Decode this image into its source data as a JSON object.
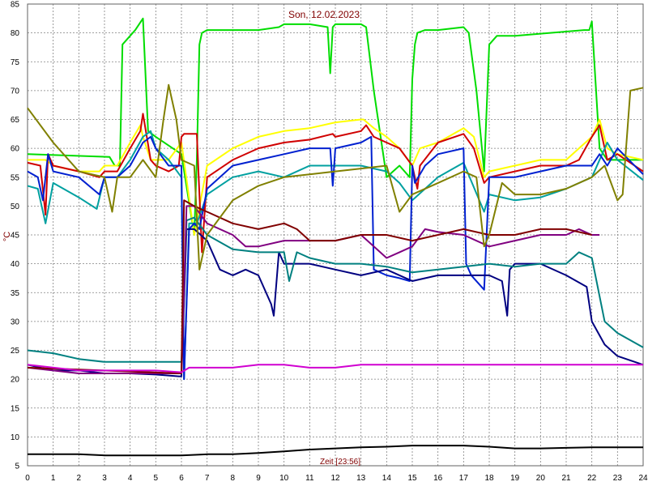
{
  "chart_data": {
    "type": "line",
    "title": "Son, 12.02.2023",
    "xlabel": "Zeit [23:56]",
    "ylabel": "°C",
    "xlim": [
      0,
      24
    ],
    "ylim": [
      5,
      85
    ],
    "xticks": [
      0,
      1,
      2,
      3,
      4,
      5,
      6,
      7,
      8,
      9,
      10,
      11,
      12,
      13,
      14,
      15,
      16,
      17,
      18,
      19,
      20,
      21,
      22,
      23,
      24
    ],
    "yticks": [
      5,
      10,
      15,
      20,
      25,
      30,
      35,
      40,
      45,
      50,
      55,
      60,
      65,
      70,
      75,
      80,
      85
    ],
    "grid": true,
    "colors": {
      "grid": "#808080",
      "title": "#800000",
      "ylabel": "#800000",
      "xlabel": "#800000"
    },
    "series": [
      {
        "color": "#00dd00",
        "x": [
          0,
          3.2,
          3.4,
          3.6,
          3.7,
          4.2,
          4.5,
          4.7,
          5,
          6,
          6.5,
          6.6,
          6.7,
          6.8,
          7,
          8,
          9,
          9.8,
          10,
          11,
          11.7,
          11.8,
          11.9,
          12,
          13,
          13.2,
          13.5,
          14,
          14.5,
          14.9,
          15,
          15.1,
          15.2,
          15.5,
          16,
          17,
          17.2,
          17.5,
          17.8,
          18,
          18.3,
          19,
          21.7,
          21.9,
          22,
          22.3,
          22.6,
          23,
          23.5,
          24
        ],
        "y": [
          59,
          58.5,
          57,
          57,
          78,
          80.5,
          82.5,
          63,
          62,
          59,
          45,
          58,
          78,
          80,
          80.5,
          80.5,
          80.5,
          81,
          81.5,
          81.5,
          81,
          73,
          81,
          81.5,
          81.5,
          81,
          70,
          55,
          57,
          55,
          72,
          78,
          80,
          80.5,
          80.5,
          81,
          80,
          70,
          56,
          78,
          79.5,
          79.5,
          80.5,
          80.5,
          82,
          60,
          58,
          58,
          58,
          58
        ]
      },
      {
        "color": "#ffff00",
        "x": [
          0,
          0.4,
          0.7,
          1,
          2,
          2.8,
          3,
          3.5,
          4,
          4.4,
          4.5,
          4.8,
          5,
          5.5,
          6,
          6.5,
          7,
          8,
          9,
          10,
          11,
          12,
          13,
          13.1,
          13.5,
          14,
          14.5,
          15,
          15.3,
          16,
          17,
          17.4,
          17.8,
          18,
          19,
          20,
          21,
          21.5,
          22,
          22.3,
          22.6,
          23,
          24
        ],
        "y": [
          58,
          58,
          58,
          57,
          56,
          56,
          57,
          57,
          61,
          64,
          62,
          58,
          58,
          58,
          61,
          45,
          57,
          60,
          62,
          63,
          63.5,
          64.5,
          65,
          65,
          63.5,
          62,
          60,
          57,
          60,
          61,
          63.5,
          62,
          55,
          56,
          57,
          58,
          58,
          60,
          62,
          65,
          60,
          59,
          58
        ]
      },
      {
        "color": "#d00000",
        "x": [
          0,
          0.5,
          0.7,
          0.8,
          1,
          2,
          2.8,
          3,
          3.5,
          4,
          4.4,
          4.5,
          4.8,
          5,
          5.5,
          5.9,
          6,
          6.1,
          6.6,
          6.8,
          7,
          8,
          9,
          10,
          11,
          11.9,
          12,
          13,
          13.2,
          13.5,
          14,
          14.5,
          15,
          15.2,
          15.3,
          16,
          17,
          17.4,
          17.8,
          18,
          19,
          20,
          21,
          21.5,
          22,
          22.3,
          22.6,
          23,
          24
        ],
        "y": [
          57.5,
          57,
          48.5,
          59,
          57,
          56,
          55,
          56,
          56,
          60,
          63,
          66,
          58,
          57,
          56,
          57,
          62,
          62.5,
          62.5,
          42,
          55,
          58,
          60,
          61,
          61.5,
          62.5,
          62,
          63,
          64,
          62,
          61,
          60,
          57,
          53,
          57,
          61,
          62.5,
          60,
          54,
          55,
          56,
          57,
          57,
          58,
          62,
          64,
          58,
          59,
          56
        ]
      },
      {
        "color": "#00a0a0",
        "x": [
          0,
          0.4,
          0.7,
          1,
          2,
          2.7,
          3,
          3.5,
          4,
          4.5,
          4.8,
          5,
          5.5,
          6,
          6.1,
          6.3,
          6.6,
          7,
          8,
          9,
          10,
          11,
          12,
          13,
          13.5,
          14,
          14.5,
          15,
          15.5,
          16,
          17,
          17.8,
          18,
          19,
          20,
          21,
          22,
          22.6,
          23,
          24
        ],
        "y": [
          53.5,
          53,
          47,
          54,
          51.5,
          49.5,
          55,
          55,
          58,
          62,
          63,
          60,
          58,
          55,
          20,
          47,
          47,
          52,
          55,
          56,
          55,
          57,
          57,
          57,
          56.5,
          56,
          54,
          51,
          53,
          55,
          57.5,
          49,
          52,
          51,
          51.5,
          53,
          55,
          61,
          58,
          54.5
        ]
      },
      {
        "color": "#0020d0",
        "x": [
          0,
          0.4,
          0.6,
          0.8,
          1,
          2,
          2.8,
          3,
          3.5,
          4,
          4.5,
          4.8,
          5,
          5.5,
          6,
          6.1,
          6.3,
          6.5,
          6.7,
          7,
          8,
          9,
          10,
          11,
          11.8,
          11.9,
          12,
          13,
          13.4,
          13.5,
          14,
          14.5,
          14.9,
          15,
          15.1,
          15.5,
          16,
          17,
          17.1,
          17.3,
          17.8,
          18,
          19,
          20,
          21,
          22,
          22.3,
          22.6,
          23,
          24
        ],
        "y": [
          56,
          55,
          51,
          59,
          56,
          55,
          52,
          55,
          55,
          57,
          61,
          62,
          60,
          57,
          57,
          20,
          46,
          47,
          46,
          53,
          57,
          58,
          59,
          60,
          60,
          53.5,
          60,
          61,
          62,
          39,
          38,
          37.5,
          37,
          57,
          54,
          57,
          59,
          60,
          40,
          38,
          35.5,
          55,
          55,
          56,
          57,
          57,
          59,
          57,
          60,
          55.5
        ]
      },
      {
        "color": "#000080",
        "x": [
          0,
          1,
          2,
          3,
          4,
          5,
          5.9,
          6,
          6.2,
          6.5,
          7,
          7.5,
          8,
          8.5,
          9,
          9.5,
          9.6,
          9.8,
          10,
          11,
          12,
          13,
          14,
          15,
          16,
          17,
          18,
          18.5,
          18.7,
          18.8,
          19,
          20,
          21,
          21.8,
          22,
          22.5,
          23,
          24
        ],
        "y": [
          22.5,
          21.5,
          21.5,
          21,
          21,
          20.8,
          20.5,
          20.5,
          46,
          46,
          44,
          39,
          38,
          39,
          38,
          33,
          31,
          42,
          40,
          40,
          39,
          38,
          39,
          37,
          38,
          38,
          38,
          37,
          31,
          39,
          40,
          40,
          38,
          36,
          30,
          26,
          24,
          22.5
        ]
      },
      {
        "color": "#008080",
        "x": [
          0,
          1,
          2,
          3,
          4,
          5,
          5.9,
          6,
          6.2,
          6.5,
          7,
          8,
          9,
          10,
          10.2,
          10.5,
          11,
          12,
          13,
          14,
          15,
          16,
          17,
          18,
          19,
          20,
          21,
          21.5,
          22,
          22.5,
          23,
          24
        ],
        "y": [
          25,
          24.5,
          23.5,
          23,
          23,
          23,
          23,
          23,
          47.5,
          48,
          45,
          42.5,
          42,
          42,
          37,
          42,
          41,
          40,
          40,
          39.5,
          38.5,
          39,
          39.5,
          40,
          39.5,
          40,
          40,
          42,
          41,
          30,
          28,
          25.5
        ]
      },
      {
        "color": "#800080",
        "x": [
          0,
          1,
          2,
          3,
          4,
          5,
          6,
          6.2,
          6.5,
          7,
          8,
          8.5,
          9,
          10,
          11,
          12,
          13,
          13.5,
          14,
          14.5,
          15,
          15.5,
          16,
          17,
          18,
          19,
          20,
          21,
          21.5,
          22,
          22.3
        ],
        "y": [
          22,
          21.5,
          21,
          21,
          21,
          21,
          21,
          50,
          50,
          47,
          45,
          43,
          43,
          44,
          44,
          44,
          45,
          43,
          41,
          42,
          43,
          46,
          45.5,
          45,
          43,
          44,
          45,
          45,
          46,
          45,
          45
        ]
      },
      {
        "color": "#800000",
        "x": [
          0,
          6,
          6.1,
          6.5,
          7,
          8,
          9,
          10,
          10.5,
          11,
          12,
          13,
          14,
          15,
          16,
          17,
          18,
          19,
          20,
          21,
          22
        ],
        "y": [
          22,
          21,
          51,
          50,
          49,
          47,
          46,
          47,
          46,
          44,
          44,
          45,
          45,
          44,
          45,
          46,
          45,
          45,
          46,
          46,
          45
        ]
      },
      {
        "color": "#808000",
        "x": [
          0,
          1,
          2,
          3,
          3.3,
          3.5,
          4,
          4.5,
          5,
          5.3,
          5.5,
          5.8,
          6,
          6.5,
          6.7,
          7,
          8,
          9,
          10,
          11,
          12,
          13,
          14,
          14.5,
          15,
          16,
          17,
          17.5,
          17.8,
          18,
          18.5,
          19,
          20,
          21,
          22,
          22.5,
          23,
          23.2,
          23.5,
          24
        ],
        "y": [
          67,
          61,
          56,
          55,
          49,
          55,
          55,
          58,
          55,
          65,
          71,
          65,
          58,
          57,
          39,
          45,
          51,
          53.5,
          55,
          55.5,
          56,
          56.5,
          57,
          49,
          52,
          54,
          56,
          55,
          43,
          45,
          54,
          52,
          52,
          53,
          55,
          57,
          51,
          52,
          70,
          70.5
        ]
      },
      {
        "color": "#d000d0",
        "x": [
          0,
          2,
          3,
          4,
          5,
          6,
          6.3,
          7,
          8,
          9,
          10,
          11,
          12,
          13,
          14,
          15,
          16,
          17,
          18,
          19,
          20,
          21,
          22,
          23,
          24
        ],
        "y": [
          22.5,
          21.5,
          21.5,
          21.5,
          21.5,
          21.2,
          22,
          22,
          22,
          22.5,
          22.5,
          22,
          22,
          22.5,
          22.5,
          22.5,
          22.5,
          22.5,
          22.5,
          22.5,
          22.5,
          22.5,
          22.5,
          22.5,
          22.5
        ]
      },
      {
        "color": "#000000",
        "x": [
          0,
          1,
          2,
          3,
          4,
          5,
          6,
          7,
          8,
          9,
          10,
          11,
          12,
          13,
          14,
          15,
          16,
          17,
          18,
          19,
          20,
          21,
          22,
          23,
          24
        ],
        "y": [
          7,
          7,
          7,
          6.8,
          6.8,
          6.8,
          6.8,
          7,
          7,
          7.2,
          7.5,
          7.8,
          8,
          8.2,
          8.3,
          8.5,
          8.5,
          8.5,
          8.3,
          8,
          8,
          8.1,
          8.2,
          8.2,
          8.2
        ]
      }
    ]
  }
}
